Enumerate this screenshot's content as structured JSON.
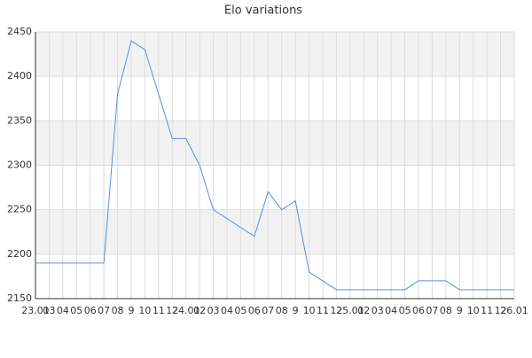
{
  "chart_data": {
    "type": "line",
    "title": "Elo variations",
    "categories": [
      "23.01",
      "03",
      "04",
      "05",
      "06",
      "07",
      "08",
      "9",
      "10",
      "11",
      "12",
      "24.01",
      "02",
      "03",
      "04",
      "05",
      "06",
      "07",
      "08",
      "9",
      "10",
      "11",
      "12",
      "25.01",
      "02",
      "03",
      "04",
      "05",
      "06",
      "07",
      "08",
      "9",
      "10",
      "11",
      "12",
      "26.01"
    ],
    "series": [
      {
        "name": "Elo",
        "color": "#5a8fdc",
        "values": [
          2190,
          2190,
          2190,
          2190,
          2190,
          2190,
          2380,
          2440,
          2430,
          2380,
          2330,
          2330,
          2300,
          2250,
          2240,
          2230,
          2220,
          2270,
          2250,
          2260,
          2180,
          2170,
          2160,
          2160,
          2160,
          2160,
          2160,
          2160,
          2170,
          2170,
          2170,
          2160,
          2160,
          2160,
          2160,
          2160
        ]
      }
    ],
    "ylim": [
      2150,
      2450
    ],
    "yticks": [
      2150,
      2200,
      2250,
      2300,
      2350,
      2400,
      2450
    ],
    "grid": true
  }
}
